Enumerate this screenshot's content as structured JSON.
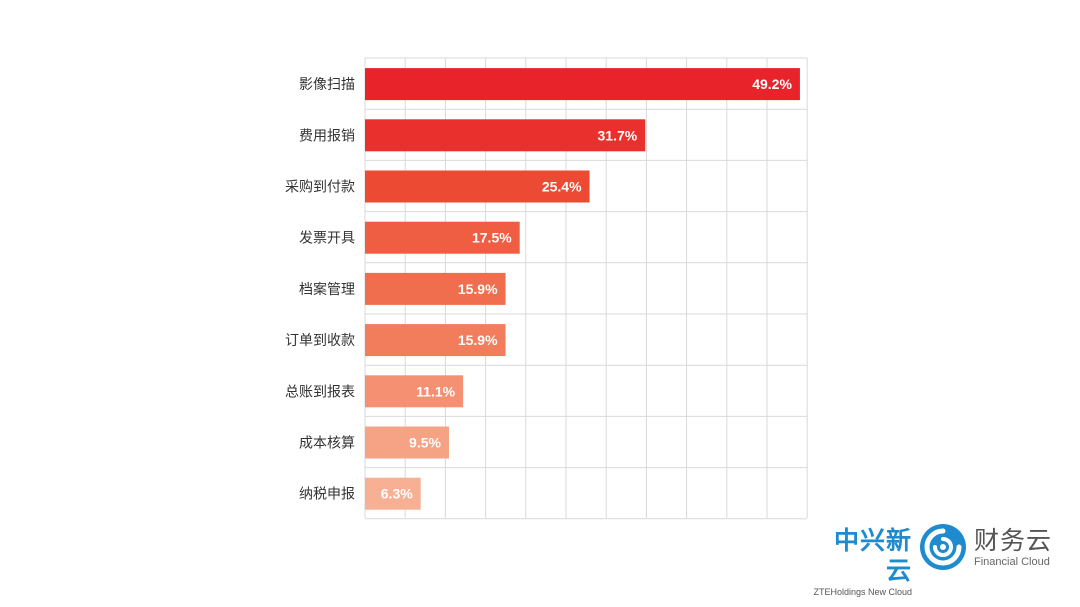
{
  "chart_data": {
    "type": "bar",
    "orientation": "horizontal",
    "categories": [
      "影像扫描",
      "费用报销",
      "采购到付款",
      "发票开具",
      "档案管理",
      "订单到收款",
      "总账到报表",
      "成本核算",
      "纳税申报"
    ],
    "values": [
      49.2,
      31.7,
      25.4,
      17.5,
      15.9,
      15.9,
      11.1,
      9.5,
      6.3
    ],
    "value_labels": [
      "49.2%",
      "31.7%",
      "25.4%",
      "17.5%",
      "15.9%",
      "15.9%",
      "11.1%",
      "9.5%",
      "6.3%"
    ],
    "xlim": [
      0,
      50
    ],
    "grid": true,
    "colors": [
      "#e8232a",
      "#ea302c",
      "#ec4a33",
      "#ef5e42",
      "#f06e4e",
      "#f27d5c",
      "#f59073",
      "#f6a285",
      "#f7b094"
    ]
  },
  "branding": {
    "left_name_cn": "中兴新云",
    "left_name_en": "ZTEHoldings New Cloud",
    "right_name_cn": "财务云",
    "right_name_en": "Financial Cloud",
    "icon": "swirl-logo-icon",
    "brand_color": "#1e8bcf"
  }
}
